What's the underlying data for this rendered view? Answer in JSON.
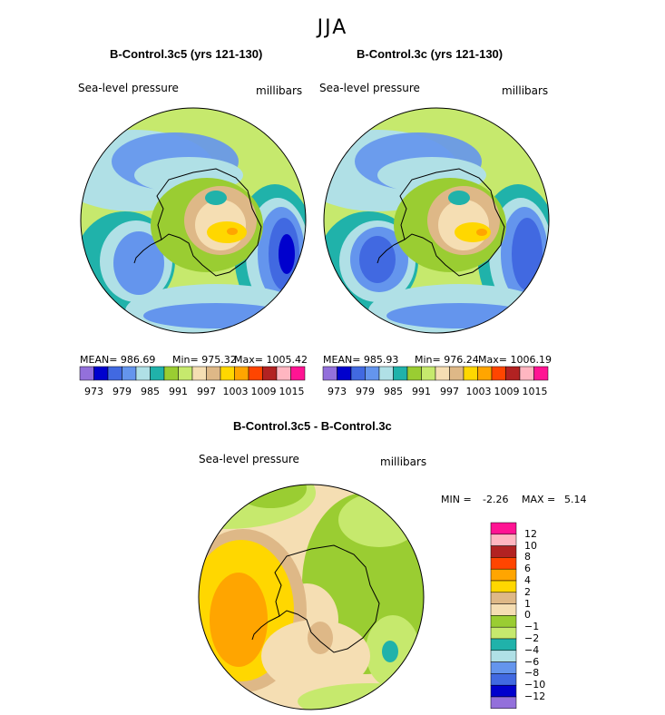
{
  "season": "JJA",
  "colors": {
    "abs_scale": [
      "#9370db",
      "#0000cd",
      "#4169e1",
      "#6495ed",
      "#b0e0e6",
      "#20b2aa",
      "#9acd32",
      "#c6e96d",
      "#f5deb3",
      "#deb887",
      "#ffd700",
      "#ffa500",
      "#ff4500",
      "#b22222",
      "#ffb6c1",
      "#ff1493"
    ],
    "diff_scale": [
      "#ff1493",
      "#ffb6c1",
      "#b22222",
      "#ff4500",
      "#ffa500",
      "#ffd700",
      "#deb887",
      "#f5deb3",
      "#9acd32",
      "#c6e96d",
      "#20b2aa",
      "#b0e0e6",
      "#6495ed",
      "#4169e1",
      "#0000cd",
      "#9370db"
    ]
  },
  "panels": [
    {
      "title": "B-Control.3c5 (yrs 121-130)",
      "variable": "Sea-level pressure",
      "units": "millibars",
      "mean": "MEAN= 986.69",
      "min": "Min= 975.32",
      "max": "Max= 1005.42"
    },
    {
      "title": "B-Control.3c (yrs 121-130)",
      "variable": "Sea-level pressure",
      "units": "millibars",
      "mean": "MEAN= 985.93",
      "min": "Min= 976.24",
      "max": "Max= 1006.19"
    }
  ],
  "abs_ticks": [
    "973",
    "979",
    "985",
    "991",
    "997",
    "1003",
    "1009",
    "1015"
  ],
  "diff": {
    "title": "B-Control.3c5 - B-Control.3c",
    "variable": "Sea-level pressure",
    "units": "millibars",
    "min_label": "MIN =",
    "min_value": "-2.26",
    "max_label": "MAX =",
    "max_value": "5.14",
    "ticks": [
      "12",
      "10",
      "8",
      "6",
      "4",
      "2",
      "1",
      "0",
      "−1",
      "−2",
      "−4",
      "−6",
      "−8",
      "−10",
      "−12"
    ]
  }
}
